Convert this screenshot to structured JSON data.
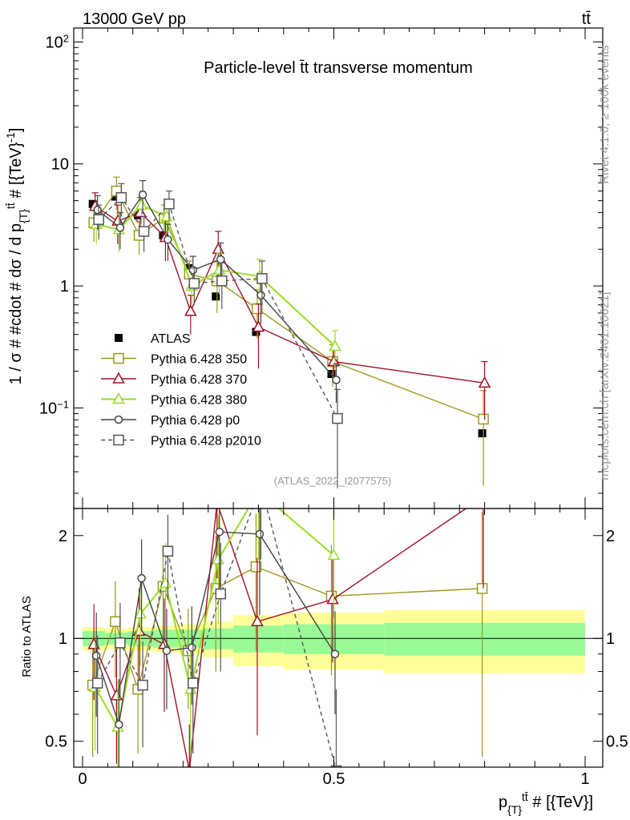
{
  "header": {
    "left_label": "13000 GeV pp",
    "right_label": "tt̄"
  },
  "side_labels": {
    "rivet": "Rivet 4.1.0, ≥ 100k events",
    "source": "mcplots.cern.ch [arXiv:2401.10621]"
  },
  "colors": {
    "ATLAS": "#000000",
    "Pythia 6.428 350": "#9a9a1e",
    "Pythia 6.428 370": "#a0102a",
    "Pythia 6.428 380": "#99dd22",
    "Pythia 6.428 p0": "#444444",
    "Pythia 6.428 p2010": "#555555",
    "band_inner": "#98fb98",
    "band_outer": "#ffff99"
  },
  "chart_data": [
    {
      "type": "line",
      "panel": "main",
      "title": "Particle-level t̄t transverse momentum",
      "xlabel": "p_{T}^{tt̄} # [{TeV}]",
      "ylabel": "1 / σ # #cdot # dσ / d p_{T}^{tt̄} # [{TeV}^{-1}]",
      "yscale": "log",
      "xlim": [
        0,
        1
      ],
      "ylim": [
        0.015,
        130
      ],
      "y_ticks": [
        "10^-1",
        "1",
        "10",
        "10^2"
      ],
      "annotation": "(ATLAS_2022_I2077575)",
      "x": [
        0.025,
        0.07,
        0.115,
        0.165,
        0.215,
        0.27,
        0.35,
        0.5,
        0.8
      ],
      "series": [
        {
          "name": "ATLAS",
          "marker": "filled-square",
          "line": "none",
          "values": [
            4.7,
            5.4,
            3.8,
            2.6,
            1.4,
            0.82,
            0.42,
            0.19,
            0.062
          ]
        },
        {
          "name": "Pythia 6.428 350",
          "marker": "open-square",
          "line": "solid",
          "values": [
            3.3,
            6.0,
            2.6,
            3.6,
            1.25,
            1.1,
            0.65,
            0.24,
            0.081
          ],
          "err": [
            1.0,
            1.8,
            0.8,
            1.0,
            0.35,
            0.5,
            0.28,
            0.09,
            0.058
          ]
        },
        {
          "name": "Pythia 6.428 370",
          "marker": "open-triangle",
          "line": "solid",
          "values": [
            4.5,
            3.4,
            4.0,
            2.5,
            0.62,
            2.0,
            0.46,
            0.24,
            0.16
          ],
          "err": [
            1.3,
            1.2,
            1.3,
            0.9,
            0.22,
            0.8,
            0.25,
            0.07,
            0.08
          ]
        },
        {
          "name": "Pythia 6.428 380",
          "marker": "open-triangle",
          "line": "solid",
          "values": [
            3.2,
            2.9,
            4.6,
            3.7,
            1.0,
            1.35,
            1.2,
            0.32,
            null
          ],
          "err": [
            1.0,
            1.0,
            1.4,
            1.0,
            0.3,
            0.5,
            0.45,
            0.11,
            null
          ]
        },
        {
          "name": "Pythia 6.428 p0",
          "marker": "open-circle",
          "line": "solid",
          "values": [
            4.2,
            3.0,
            5.6,
            2.4,
            1.35,
            1.65,
            0.84,
            0.17,
            null
          ],
          "err": [
            1.3,
            1.0,
            1.7,
            0.8,
            0.4,
            0.6,
            0.35,
            0.06,
            null
          ]
        },
        {
          "name": "Pythia 6.428 p2010",
          "marker": "open-square",
          "line": "dashed",
          "values": [
            3.5,
            5.3,
            2.8,
            4.7,
            1.05,
            1.1,
            1.15,
            0.082,
            null
          ],
          "err": [
            1.1,
            1.6,
            0.9,
            1.3,
            0.35,
            0.45,
            0.45,
            0.06,
            null
          ]
        }
      ]
    },
    {
      "type": "line",
      "panel": "ratio",
      "ylabel": "Ratio to ATLAS",
      "xlabel": "p_{T}^{tt̄} # [{TeV}]",
      "yscale": "log",
      "xlim": [
        0,
        1
      ],
      "ylim": [
        0.42,
        2.4
      ],
      "y_ticks": [
        "0.5",
        "1",
        "2"
      ],
      "x_ticks": [
        "0",
        "0.5",
        "1"
      ],
      "x": [
        0.025,
        0.07,
        0.115,
        0.165,
        0.215,
        0.27,
        0.35,
        0.5,
        0.8
      ],
      "bands": {
        "edges": [
          0,
          0.045,
          0.09,
          0.14,
          0.19,
          0.24,
          0.3,
          0.4,
          0.6,
          1.0
        ],
        "inner": [
          0.05,
          0.04,
          0.05,
          0.06,
          0.06,
          0.07,
          0.09,
          0.1,
          0.11
        ],
        "outer": [
          0.08,
          0.07,
          0.08,
          0.09,
          0.1,
          0.12,
          0.17,
          0.19,
          0.21
        ]
      },
      "series": [
        {
          "name": "Pythia 6.428 350",
          "values": [
            0.73,
            1.12,
            0.71,
            1.42,
            0.92,
            1.4,
            1.62,
            1.33,
            1.4
          ],
          "err": [
            0.28,
            0.35,
            0.25,
            0.45,
            0.3,
            0.6,
            0.7,
            0.55,
            0.95
          ]
        },
        {
          "name": "Pythia 6.428 370",
          "values": [
            0.96,
            0.68,
            1.05,
            0.96,
            0.41,
            2.5,
            1.12,
            1.3,
            2.6
          ],
          "err": [
            0.3,
            0.25,
            0.35,
            0.35,
            0.15,
            1.0,
            0.6,
            0.45,
            1.2
          ]
        },
        {
          "name": "Pythia 6.428 380",
          "values": [
            0.72,
            0.55,
            1.18,
            1.45,
            0.71,
            1.7,
            2.7,
            1.75,
            null
          ],
          "err": [
            0.25,
            0.2,
            0.35,
            0.45,
            0.25,
            0.6,
            1.0,
            0.6,
            null
          ]
        },
        {
          "name": "Pythia 6.428 p0",
          "values": [
            0.89,
            0.56,
            1.5,
            0.92,
            0.94,
            2.05,
            2.02,
            0.9,
            null
          ],
          "err": [
            0.3,
            0.2,
            0.45,
            0.3,
            0.3,
            0.75,
            0.85,
            0.3,
            null
          ]
        },
        {
          "name": "Pythia 6.428 p2010",
          "values": [
            0.74,
            0.97,
            0.73,
            1.8,
            0.74,
            1.35,
            2.8,
            0.41,
            null
          ],
          "err": [
            0.28,
            0.3,
            0.25,
            0.5,
            0.28,
            0.55,
            1.1,
            0.3,
            null
          ]
        }
      ]
    }
  ]
}
